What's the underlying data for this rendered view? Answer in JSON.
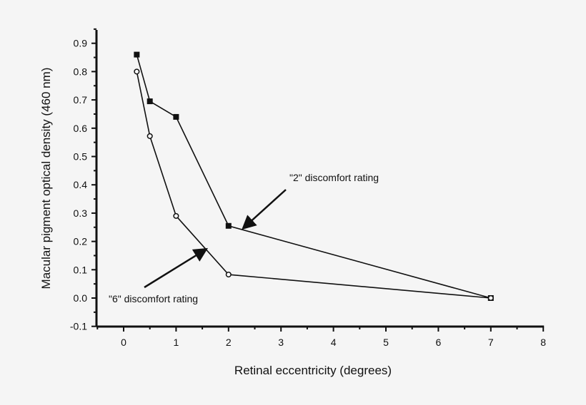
{
  "chart_data": {
    "type": "line",
    "title": "",
    "xlabel": "Retinal eccentricity (degrees)",
    "ylabel": "Macular pigment optical density (460 nm)",
    "xlim": [
      -0.5,
      8
    ],
    "ylim": [
      -0.1,
      0.95
    ],
    "xticks": [
      "0",
      "1",
      "2",
      "3",
      "4",
      "5",
      "6",
      "7",
      "8"
    ],
    "yticks": [
      "-0.1",
      "0.0",
      "0.1",
      "0.2",
      "0.3",
      "0.4",
      "0.5",
      "0.6",
      "0.7",
      "0.8",
      "0.9"
    ],
    "grid": false,
    "series": [
      {
        "marker": "filled-square",
        "color": "#111111",
        "x": [
          0.25,
          0.5,
          1,
          2,
          7
        ],
        "y": [
          0.86,
          0.695,
          0.64,
          0.255,
          0.0
        ]
      },
      {
        "marker": "open-circle",
        "color": "#111111",
        "x": [
          0.25,
          0.5,
          1,
          2,
          7
        ],
        "y": [
          0.8,
          0.572,
          0.29,
          0.083,
          0.0
        ]
      }
    ],
    "annotations": [
      {
        "text": "\"2\" discomfort rating",
        "points_to": [
          2.3,
          0.25
        ]
      },
      {
        "text": "\"6\" discomfort rating",
        "points_to": [
          1.55,
          0.17
        ]
      }
    ]
  }
}
